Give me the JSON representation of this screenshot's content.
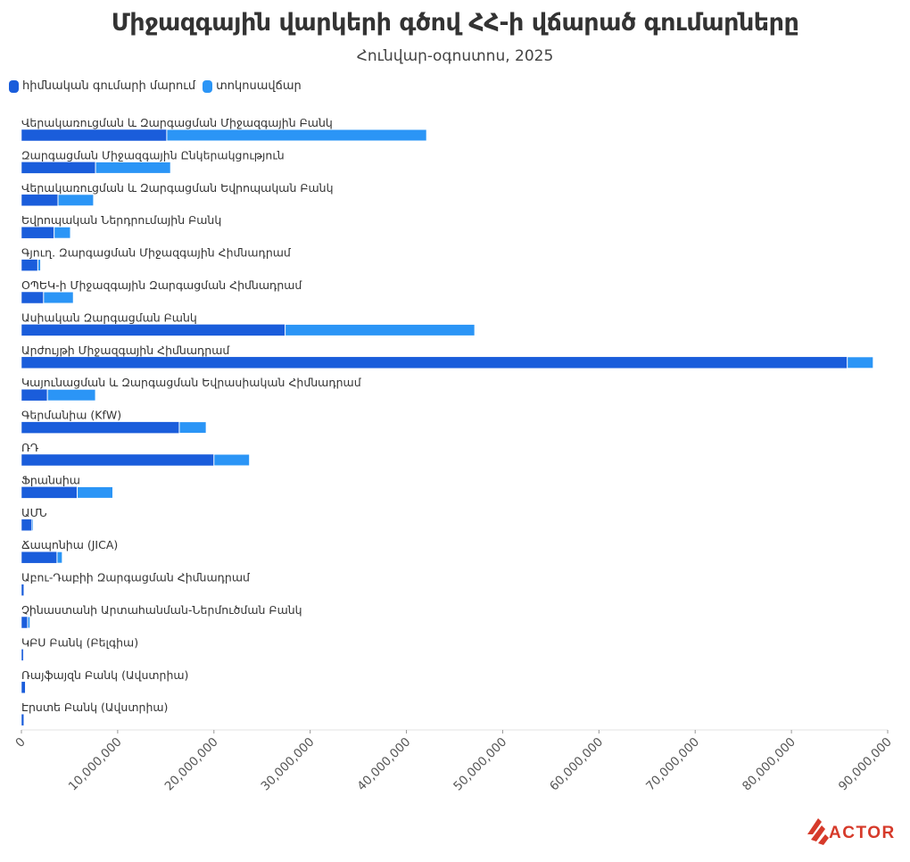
{
  "chart_data": {
    "type": "bar",
    "orientation": "horizontal",
    "stacked": true,
    "title": "Միջազգային վարկերի գծով ՀՀ-ի վճարած գումարները",
    "subtitle": "Հունվար-օգոստոս, 2025",
    "xlim": [
      0,
      90000000
    ],
    "xticks": [
      "0",
      "10,000,000",
      "20,000,000",
      "30,000,000",
      "40,000,000",
      "50,000,000",
      "60,000,000",
      "70,000,000",
      "80,000,000",
      "90,000,000"
    ],
    "grid": false,
    "legend_position": "top-left",
    "categories": [
      "Վերակառուցման և Զարգացման Միջազգային Բանկ",
      "Զարգացման Միջազգային Ընկերակցություն",
      "Վերակառուցման և Զարգացման Եվրոպական Բանկ",
      "Եվրոպական Ներդրումային Բանկ",
      "Գյուղ. Զարգացման Միջազգային Հիմնադրամ",
      "ՕՊԵԿ-ի Միջազգային Զարգացման Հիմնադրամ",
      "Ասիական Զարգացման Բանկ",
      "Արժույթի Միջազգային Հիմնադրամ",
      "Կայունացման և Զարգացման Եվրասիական Հիմնադրամ",
      "Գերմանիա (KfW)",
      "ՌԴ",
      "Ֆրանսիա",
      "ԱՄՆ",
      "Ճապոնիա (JICA)",
      "Աբու-Դաբիի Զարգացման Հիմնադրամ",
      "Չինաստանի Արտահանման-Ներմուծման Բանկ",
      "ԿԲՍ Բանկ (Բելգիա)",
      "Ռայֆայզն Բանկ (Ավստրիա)",
      "Էրստե Բանկ (Ավստրիա)"
    ],
    "series": [
      {
        "name": "հիմնական գումարի մարում",
        "color": "#1a5ddb",
        "values": [
          15100000,
          7700000,
          3800000,
          3400000,
          1700000,
          2300000,
          27400000,
          85800000,
          2700000,
          16400000,
          20000000,
          5800000,
          1100000,
          3700000,
          250000,
          650000,
          200000,
          400000,
          250000
        ]
      },
      {
        "name": "տոկոսավճար",
        "color": "#2b95f6",
        "values": [
          27000000,
          7800000,
          3700000,
          1700000,
          300000,
          3100000,
          19700000,
          2700000,
          5000000,
          2800000,
          3700000,
          3700000,
          150000,
          550000,
          0,
          250000,
          0,
          0,
          0
        ]
      }
    ]
  },
  "brand": {
    "logo_text": "ACTOR",
    "accent": "#d63a2a"
  }
}
